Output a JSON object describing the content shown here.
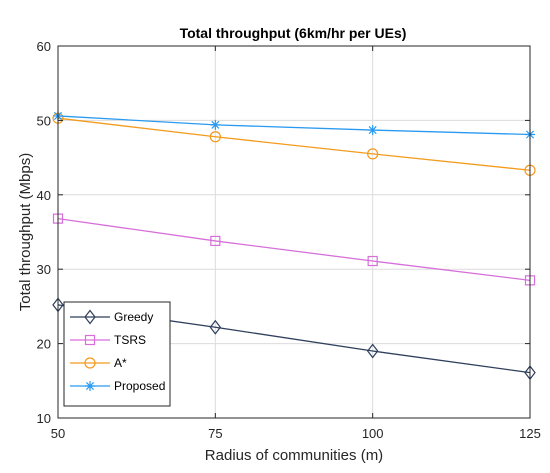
{
  "chart_data": {
    "type": "line",
    "title": "Total throughput (6km/hr per UEs)",
    "xlabel": "Radius of communities (m)",
    "ylabel": "Total throughput  (Mbps)",
    "x": [
      50,
      75,
      100,
      125
    ],
    "xlim": [
      50,
      125
    ],
    "ylim": [
      10,
      60
    ],
    "xticks": [
      50,
      75,
      100,
      125
    ],
    "yticks": [
      10,
      20,
      30,
      40,
      50,
      60
    ],
    "grid": true,
    "legend_position": "bottom-left",
    "series": [
      {
        "name": "Greedy",
        "marker": "diamond",
        "color": "#2f3f5c",
        "values": [
          25.2,
          22.2,
          19.0,
          16.1
        ]
      },
      {
        "name": "TSRS",
        "marker": "square",
        "color": "#d66fd9",
        "values": [
          36.8,
          33.8,
          31.1,
          28.5
        ]
      },
      {
        "name": "A*",
        "marker": "circle",
        "color": "#f29b1d",
        "values": [
          50.3,
          47.8,
          45.5,
          43.3
        ]
      },
      {
        "name": "Proposed",
        "marker": "asterisk",
        "color": "#2a9af0",
        "values": [
          50.6,
          49.4,
          48.7,
          48.1
        ]
      }
    ]
  }
}
